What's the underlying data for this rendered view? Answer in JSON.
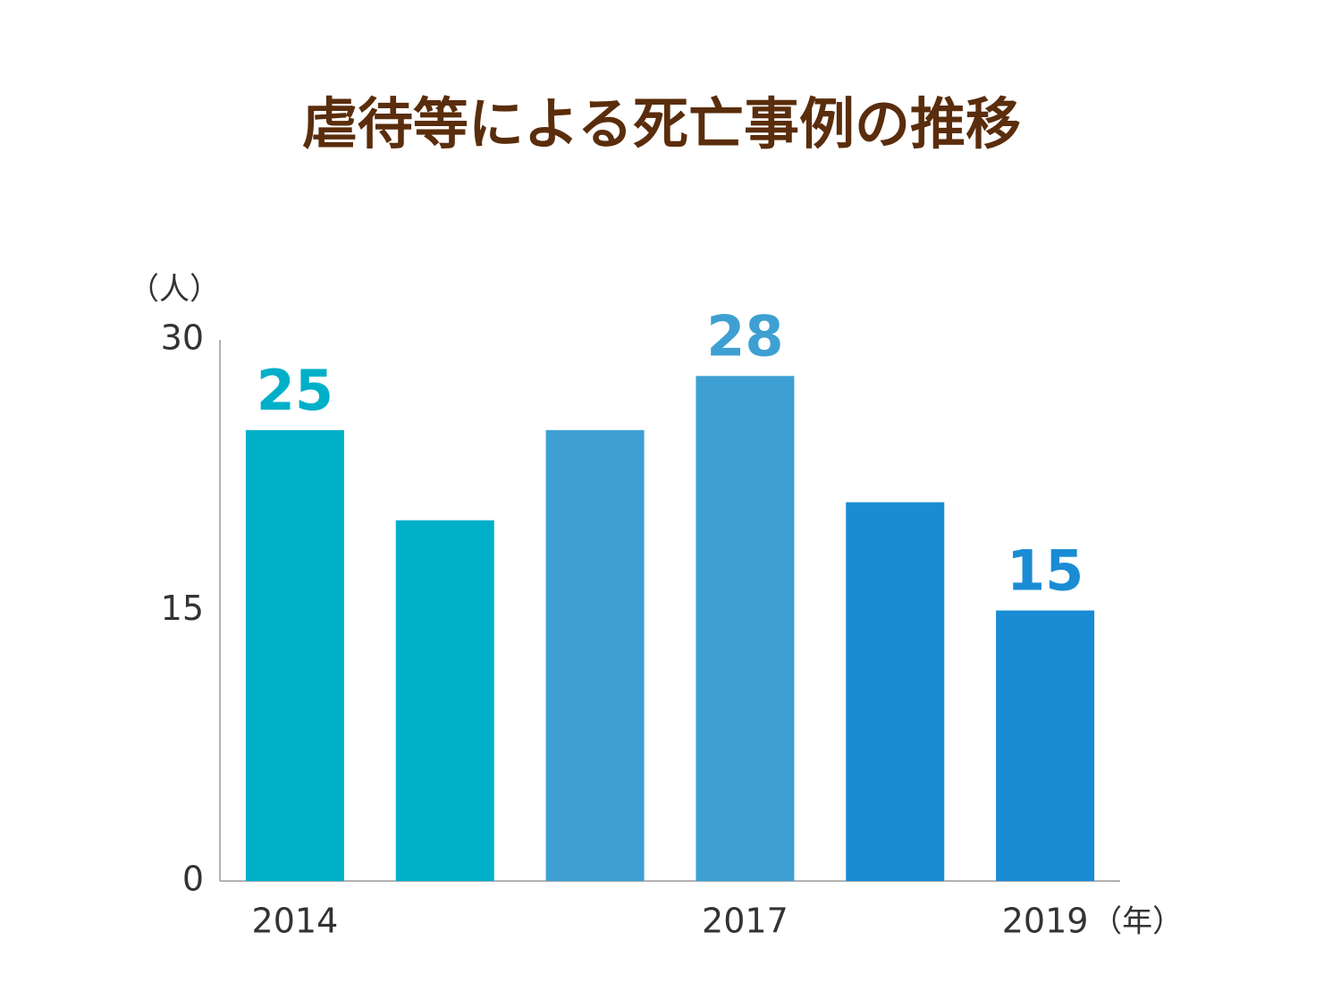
{
  "chart_data": {
    "type": "bar",
    "title": "虐待等による死亡事例の推移",
    "y_label": "（人）",
    "x_label": "（年）",
    "categories": [
      "2014",
      null,
      null,
      "2017",
      null,
      "2019"
    ],
    "values": [
      25,
      20,
      25,
      28,
      21,
      15
    ],
    "value_labels": [
      "25",
      null,
      null,
      "28",
      null,
      "15"
    ],
    "colors": [
      "#00b0c8",
      "#00b0c8",
      "#3ea0d2",
      "#3ea0d2",
      "#1a8cd4",
      "#1a8cd4"
    ],
    "ylim": [
      0,
      30
    ],
    "yticks": [
      0,
      15,
      30
    ],
    "grid": false
  }
}
